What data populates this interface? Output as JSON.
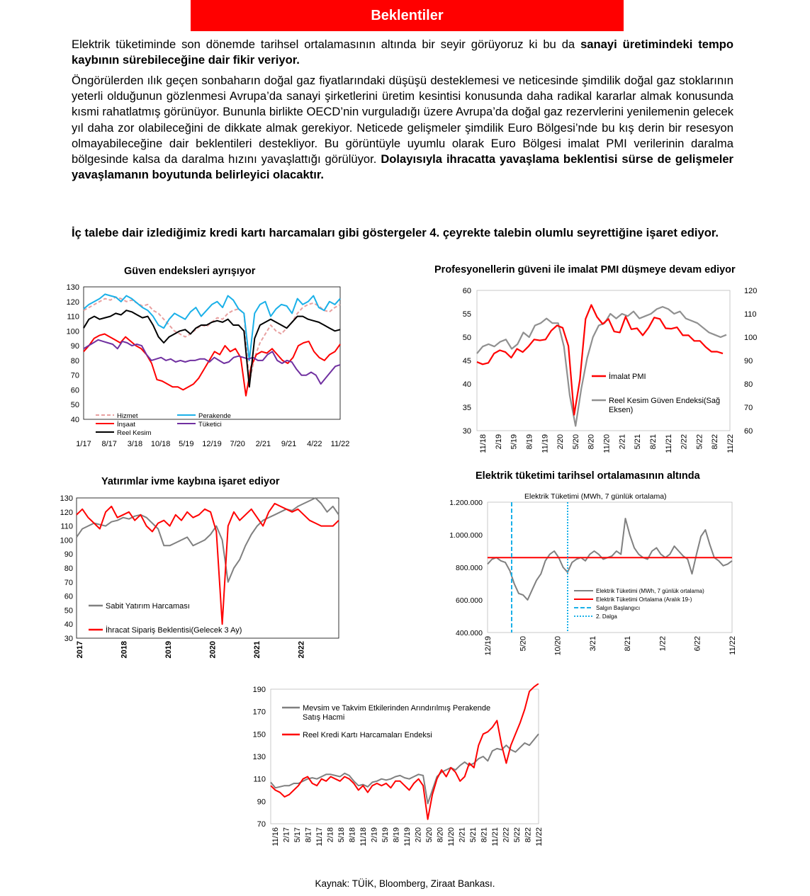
{
  "header": {
    "title": "Beklentiler"
  },
  "paragraphs": {
    "p1_plain": "Elektrik tüketiminde son dönemde tarihsel ortalamasının altında bir seyir görüyoruz ki bu da ",
    "p1_bold": "sanayi üretimindeki tempo kaybının sürebileceğine dair fikir veriyor.",
    "p2_plain": "Öngörülerden ılık geçen sonbaharın doğal gaz fiyatlarındaki düşüşü desteklemesi ve neticesinde şimdilik doğal gaz stoklarının yeterli olduğunun gözlenmesi Avrupa’da sanayi şirketlerini üretim kesintisi konusunda daha radikal kararlar almak konusunda kısmi rahatlatmış görünüyor. Bununla birlikte OECD’nin vurguladığı üzere Avrupa’da doğal gaz rezervlerini yenilemenin gelecek yıl daha zor olabileceğini de dikkate almak gerekiyor. Neticede gelişmeler şimdilik Euro Bölgesi’nde bu kış derin bir resesyon olmayabileceğine dair beklentileri destekliyor. Bu görüntüyle uyumlu olarak Euro Bölgesi imalat PMI verilerinin daralma bölgesinde kalsa da daralma hızını yavaşlattığı görülüyor. ",
    "p2_bold": "Dolayısıyla ihracatta yavaşlama beklentisi sürse de gelişmeler yavaşlamanın boyutunda belirleyici olacaktır.",
    "p3": "İç talebe dair izlediğimiz kredi kartı harcamaları gibi göstergeler 4. çeyrekte talebin olumlu seyrettiğine işaret ediyor."
  },
  "source": "Kaynak: TÜİK, Bloomberg, Ziraat Bankası.",
  "chart_data": [
    {
      "id": "guven",
      "type": "line",
      "title": "Güven endeksleri ayrışıyor",
      "x_ticks": [
        "1/17",
        "8/17",
        "3/18",
        "10/18",
        "5/19",
        "12/19",
        "7/20",
        "2/21",
        "9/21",
        "4/22",
        "11/22"
      ],
      "ylim": [
        40,
        130
      ],
      "y_ticks": [
        40,
        50,
        60,
        70,
        80,
        90,
        100,
        110,
        120,
        130
      ],
      "grid": false,
      "legend": "bottom-left",
      "series": [
        {
          "name": "Hizmet",
          "color": "#e8a0a0",
          "dash": true,
          "values": [
            114,
            116,
            118,
            120,
            122,
            121,
            123,
            122,
            120,
            121,
            119,
            117,
            118,
            114,
            112,
            108,
            104,
            100,
            98,
            96,
            98,
            101,
            104,
            103,
            106,
            109,
            108,
            112,
            114,
            115,
            112,
            65,
            82,
            92,
            98,
            104,
            100,
            98,
            102,
            106,
            112,
            116,
            118,
            119,
            117,
            114,
            113,
            116,
            118
          ]
        },
        {
          "name": "Perakende",
          "color": "#1ab0e8",
          "dash": false,
          "values": [
            115,
            118,
            120,
            122,
            125,
            124,
            123,
            120,
            124,
            122,
            119,
            116,
            114,
            110,
            104,
            102,
            108,
            112,
            110,
            108,
            113,
            116,
            110,
            114,
            118,
            120,
            116,
            124,
            121,
            115,
            112,
            80,
            112,
            118,
            120,
            110,
            115,
            118,
            117,
            112,
            122,
            118,
            120,
            124,
            116,
            114,
            120,
            118,
            122
          ]
        },
        {
          "name": "İnşaat",
          "color": "#ff0000",
          "dash": false,
          "values": [
            86,
            90,
            95,
            97,
            98,
            96,
            94,
            92,
            96,
            93,
            90,
            88,
            84,
            78,
            67,
            66,
            64,
            62,
            62,
            60,
            62,
            64,
            68,
            74,
            80,
            86,
            84,
            90,
            86,
            88,
            82,
            56,
            76,
            84,
            86,
            85,
            88,
            84,
            80,
            78,
            82,
            90,
            92,
            93,
            86,
            82,
            80,
            84,
            86,
            91
          ]
        },
        {
          "name": "Tüketici",
          "color": "#7030a0",
          "dash": false,
          "values": [
            88,
            90,
            92,
            94,
            93,
            92,
            91,
            88,
            93,
            92,
            90,
            91,
            90,
            84,
            80,
            81,
            82,
            80,
            81,
            79,
            80,
            79,
            80,
            80,
            81,
            81,
            79,
            82,
            80,
            78,
            79,
            82,
            83,
            82,
            81,
            82,
            80,
            80,
            84,
            86,
            80,
            78,
            80,
            79,
            74,
            70,
            70,
            72,
            70,
            64,
            68,
            72,
            76,
            77
          ]
        },
        {
          "name": "Reel Kesim",
          "color": "#000000",
          "dash": false,
          "values": [
            102,
            108,
            110,
            108,
            109,
            110,
            112,
            111,
            114,
            113,
            111,
            109,
            110,
            104,
            96,
            92,
            96,
            98,
            100,
            101,
            98,
            102,
            104,
            104,
            106,
            107,
            106,
            108,
            104,
            104,
            100,
            62,
            95,
            104,
            106,
            108,
            106,
            104,
            102,
            106,
            110,
            110,
            108,
            107,
            106,
            104,
            102,
            100,
            101
          ]
        }
      ]
    },
    {
      "id": "pmi",
      "type": "line",
      "title": "Profesyonellerin güveni ile imalat PMI düşmeye devam ediyor",
      "x_ticks": [
        "11/18",
        "2/19",
        "5/19",
        "8/19",
        "11/19",
        "2/20",
        "5/20",
        "8/20",
        "11/20",
        "2/21",
        "5/21",
        "8/21",
        "11/21",
        "2/22",
        "5/22",
        "8/22",
        "11/22"
      ],
      "ylim_left": [
        30,
        60
      ],
      "y_ticks_left": [
        30,
        35,
        40,
        45,
        50,
        55,
        60
      ],
      "ylim_right": [
        60,
        120
      ],
      "y_ticks_right": [
        60,
        70,
        80,
        90,
        100,
        110,
        120
      ],
      "grid": false,
      "legend": "center-right",
      "series": [
        {
          "name": "İmalat PMI",
          "axis": "left",
          "color": "#ff0000",
          "values": [
            44.7,
            44.2,
            44.5,
            46.5,
            47.2,
            46.8,
            45.6,
            47.5,
            46.8,
            48.0,
            49.5,
            49.3,
            49.5,
            51.4,
            52.5,
            52.0,
            48.1,
            33.4,
            40.9,
            53.9,
            56.9,
            54.3,
            52.8,
            53.9,
            51.2,
            51.0,
            54.4,
            51.7,
            51.9,
            50.4,
            52.0,
            54.2,
            53.9,
            51.9,
            51.8,
            52.1,
            50.4,
            50.4,
            49.2,
            49.2,
            47.9,
            46.9,
            46.9,
            46.5
          ]
        },
        {
          "name": "Reel Kesim Güven Endeksi(Sağ Eksen)",
          "axis": "right",
          "color": "#909090",
          "values": [
            93,
            96,
            97,
            96,
            98,
            99,
            95,
            97,
            102,
            100,
            105,
            106,
            108,
            106,
            106,
            96,
            75,
            62,
            78,
            91,
            100,
            105,
            106,
            110,
            108,
            110,
            109,
            111,
            108,
            109,
            110,
            112,
            113,
            112,
            110,
            111,
            108,
            107,
            106,
            104,
            102,
            101,
            100,
            101
          ]
        }
      ]
    },
    {
      "id": "yatirim",
      "type": "line",
      "title": "Yatırımlar ivme kaybına işaret ediyor",
      "x_ticks": [
        "2017",
        "2018",
        "2019",
        "2020",
        "2021",
        "2022"
      ],
      "ylim": [
        30,
        130
      ],
      "y_ticks": [
        30,
        40,
        50,
        60,
        70,
        80,
        90,
        100,
        110,
        120,
        130
      ],
      "grid": false,
      "legend": "bottom-left",
      "series": [
        {
          "name": "Sabit Yatırım Harcaması",
          "color": "#808080",
          "values": [
            102,
            108,
            110,
            112,
            111,
            110,
            113,
            114,
            116,
            115,
            117,
            118,
            116,
            112,
            108,
            96,
            96,
            98,
            100,
            102,
            96,
            98,
            100,
            104,
            110,
            100,
            70,
            80,
            86,
            96,
            104,
            110,
            114,
            116,
            118,
            120,
            122,
            121,
            124,
            126,
            128,
            130,
            126,
            120,
            124,
            118
          ]
        },
        {
          "name": "İhracat Sipariş Beklentisi(Gelecek 3 Ay)",
          "color": "#ff0000",
          "values": [
            118,
            122,
            116,
            112,
            108,
            120,
            124,
            116,
            118,
            120,
            114,
            118,
            110,
            106,
            112,
            114,
            110,
            118,
            114,
            120,
            116,
            118,
            122,
            120,
            106,
            40,
            110,
            120,
            114,
            118,
            122,
            116,
            110,
            120,
            126,
            124,
            122,
            120,
            122,
            118,
            114,
            112,
            110,
            110,
            110,
            114
          ]
        }
      ]
    },
    {
      "id": "elektrik",
      "type": "line",
      "title": "Elektrik tüketimi tarihsel ortalamasının altında",
      "inner_title": "Elektrik Tüketimi (MWh, 7 günlük ortalama)",
      "x_ticks": [
        "12/19",
        "5/20",
        "10/20",
        "3/21",
        "8/21",
        "1/22",
        "6/22",
        "11/22"
      ],
      "ylim": [
        400000,
        1200000
      ],
      "y_ticks": [
        "400.000",
        "600.000",
        "800.000",
        "1.000.000",
        "1.200.000"
      ],
      "grid": false,
      "legend": "bottom-right",
      "average": 860000,
      "series": [
        {
          "name": "Elektrik Tüketimi (MWh, 7 günlük ortalama)",
          "color": "#808080",
          "values": [
            820,
            850,
            860,
            840,
            830,
            780,
            700,
            640,
            630,
            600,
            660,
            720,
            760,
            840,
            880,
            900,
            860,
            800,
            770,
            830,
            850,
            860,
            840,
            880,
            900,
            880,
            850,
            860,
            870,
            900,
            880,
            1100,
            1000,
            920,
            880,
            860,
            850,
            900,
            920,
            880,
            860,
            880,
            930,
            900,
            870,
            850,
            760,
            880,
            990,
            1030,
            940,
            860,
            840,
            810,
            820,
            840
          ]
        },
        {
          "name": "Elektrik Tüketimi Ortalama (Aralık 19-)",
          "color": "#ff0000",
          "values": []
        },
        {
          "name": "Salgın Başlangıcı",
          "color": "#1ab0e8",
          "values": []
        },
        {
          "name": "2. Dalga",
          "color": "#1ab0e8",
          "values": []
        }
      ]
    },
    {
      "id": "perakende",
      "type": "line",
      "title": "",
      "x_ticks": [
        "11/16",
        "2/17",
        "5/17",
        "8/17",
        "11/17",
        "2/18",
        "5/18",
        "8/18",
        "11/18",
        "2/19",
        "5/19",
        "8/19",
        "11/19",
        "2/20",
        "5/20",
        "8/20",
        "11/20",
        "2/21",
        "5/21",
        "8/21",
        "11/21",
        "2/22",
        "5/22",
        "8/22",
        "11/22"
      ],
      "ylim": [
        70,
        190
      ],
      "y_ticks": [
        70,
        90,
        110,
        130,
        150,
        170,
        190
      ],
      "grid": false,
      "legend": "top-left",
      "series": [
        {
          "name": "Mevsim ve Takvim Etkilerinden Arındırılmış Perakende Satış Hacmi",
          "color": "#808080",
          "values": [
            107,
            102,
            103,
            104,
            104,
            106,
            106,
            108,
            110,
            111,
            110,
            112,
            114,
            114,
            113,
            112,
            115,
            113,
            108,
            104,
            105,
            103,
            107,
            108,
            110,
            109,
            110,
            112,
            113,
            111,
            110,
            112,
            114,
            113,
            88,
            100,
            112,
            116,
            118,
            120,
            118,
            122,
            125,
            122,
            124,
            128,
            130,
            126,
            135,
            137,
            136,
            140,
            136,
            134,
            138,
            142,
            140,
            145,
            150
          ]
        },
        {
          "name": "Reel Kredi Kartı Harcamaları Endeksi",
          "color": "#ff0000",
          "values": [
            104,
            100,
            98,
            94,
            96,
            100,
            104,
            110,
            112,
            106,
            104,
            110,
            108,
            112,
            110,
            108,
            112,
            110,
            106,
            100,
            104,
            98,
            104,
            106,
            104,
            106,
            102,
            108,
            108,
            104,
            100,
            106,
            110,
            104,
            74,
            96,
            110,
            118,
            112,
            120,
            116,
            108,
            112,
            124,
            120,
            140,
            150,
            152,
            156,
            162,
            140,
            124,
            140,
            150,
            160,
            172,
            188,
            192,
            195
          ]
        }
      ]
    }
  ]
}
